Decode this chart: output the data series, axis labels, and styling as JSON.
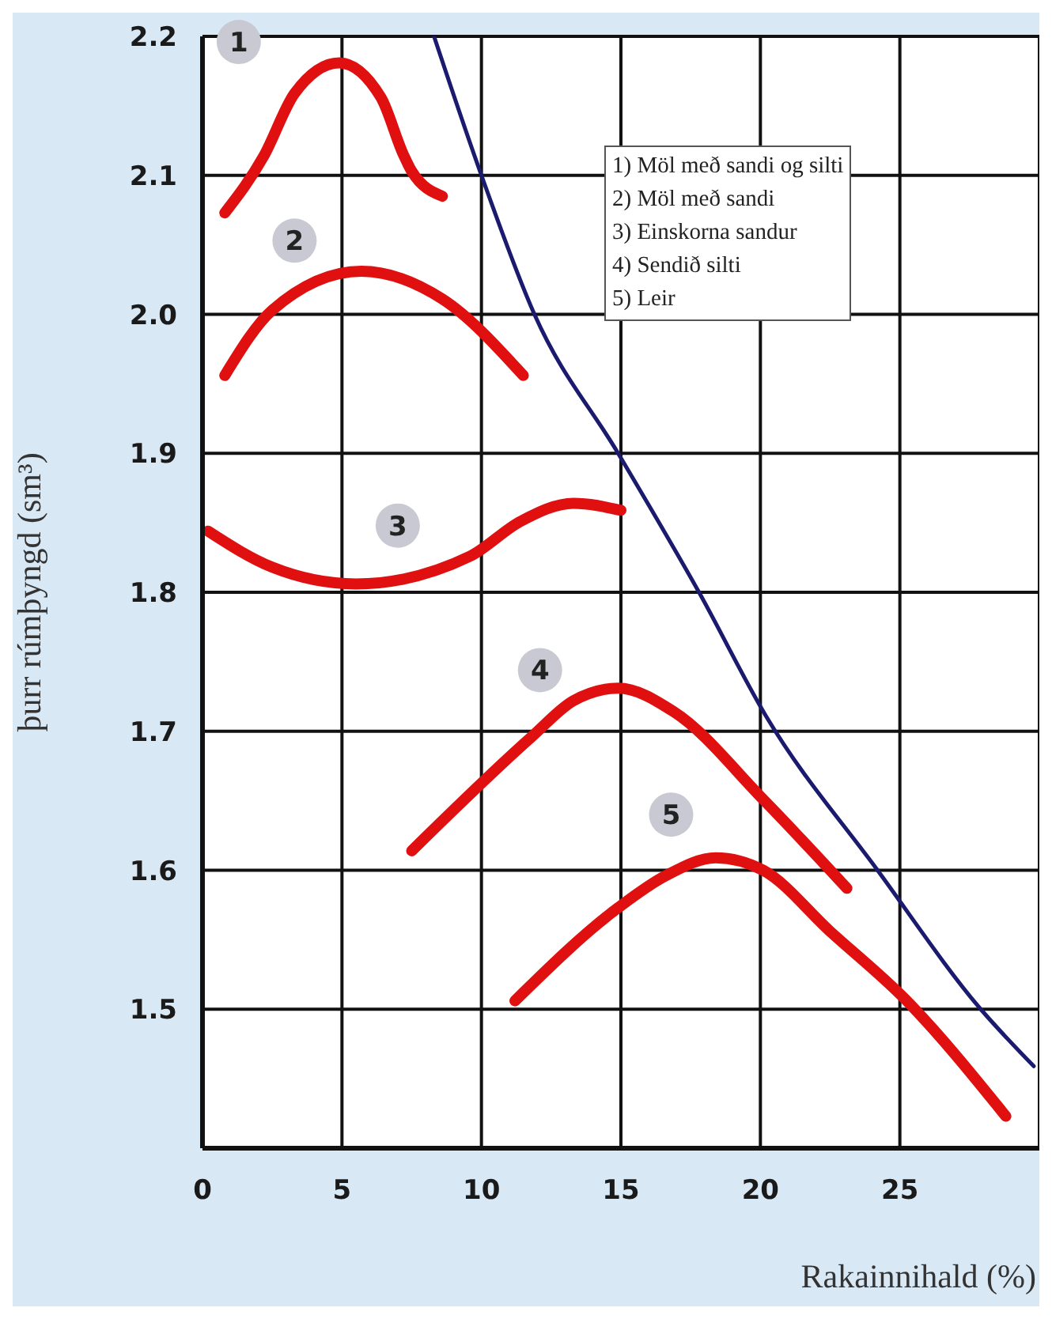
{
  "chart_data": {
    "type": "line",
    "xlabel": "Rakainnihald (%)",
    "ylabel": "þurr rúmþyngd (sm³)",
    "xlim": [
      0,
      30
    ],
    "xticks": [
      0,
      5,
      10,
      15,
      20,
      25
    ],
    "ylim": [
      1.4,
      2.2
    ],
    "yticks": [
      1.5,
      1.6,
      1.7,
      1.8,
      1.9,
      {
        "value": 2,
        "label": "2.0"
      },
      2.1,
      2.2
    ],
    "grid": true,
    "marker": "none",
    "line_style": "solid",
    "series": [
      {
        "color": "#e01010",
        "x": [
          0.8,
          2.2,
          3.3,
          4.9,
          6.4,
          7.2,
          7.5,
          8.6
        ],
        "values": [
          2.073,
          2.114,
          2.159,
          2.181,
          2.156,
          2.115,
          2.103,
          2.085
        ]
      },
      {
        "color": "#e01010",
        "x": [
          0.8,
          2.5,
          5.7,
          8.6,
          11.5
        ],
        "values": [
          1.956,
          2.003,
          2.031,
          2.011,
          1.956
        ]
      },
      {
        "color": "#e01010",
        "x": [
          0.2,
          2.5,
          5.5,
          9.6,
          11.4,
          13.3,
          15.0
        ],
        "values": [
          1.844,
          1.818,
          1.806,
          1.826,
          1.851,
          1.864,
          1.859
        ]
      },
      {
        "color": "#e01010",
        "x": [
          7.5,
          11.8,
          13.3,
          14.9,
          16.9,
          20.1,
          23.1
        ],
        "values": [
          1.614,
          1.696,
          1.722,
          1.731,
          1.714,
          1.651,
          1.587
        ]
      },
      {
        "color": "#e01010",
        "x": [
          11.2,
          14.9,
          16.6,
          18.4,
          20.1,
          22.5,
          25.2,
          28.8
        ],
        "values": [
          1.506,
          1.573,
          1.596,
          1.609,
          1.6,
          1.556,
          1.507,
          1.423
        ]
      },
      {
        "color": "#1a1a6e",
        "x": [
          8.3,
          10.0,
          11.9,
          14.9,
          17.8,
          20.2,
          24.2,
          27.9,
          29.8
        ],
        "values": [
          2.2,
          2.1,
          2.0,
          1.9,
          1.8,
          1.711,
          1.6,
          1.5,
          1.459
        ]
      }
    ],
    "annotations": [
      {
        "text": "1",
        "x": 1.3,
        "y": 2.196
      },
      {
        "text": "2",
        "x": 3.3,
        "y": 2.053
      },
      {
        "text": "3",
        "x": 7.0,
        "y": 1.848
      },
      {
        "text": "4",
        "x": 12.1,
        "y": 1.744
      },
      {
        "text": "5",
        "x": 16.8,
        "y": 1.64
      },
      "1) Möl með sandi og silti",
      "2) Möl með sandi",
      "3) Einskorna sandur",
      "4) Sendið silti",
      "5) Leir"
    ]
  }
}
